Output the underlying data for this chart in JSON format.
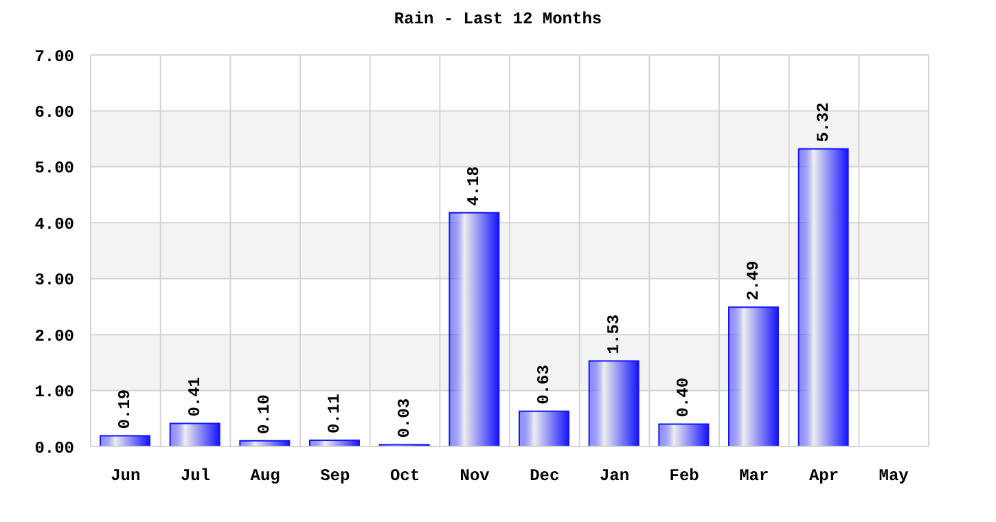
{
  "chart_data": {
    "type": "bar",
    "title": "Rain - Last 12 Months",
    "categories": [
      "Jun",
      "Jul",
      "Aug",
      "Sep",
      "Oct",
      "Nov",
      "Dec",
      "Jan",
      "Feb",
      "Mar",
      "Apr",
      "May"
    ],
    "values": [
      0.19,
      0.41,
      0.1,
      0.11,
      0.03,
      4.18,
      0.63,
      1.53,
      0.4,
      2.49,
      5.32,
      null
    ],
    "value_labels": [
      "0.19",
      "0.41",
      "0.10",
      "0.11",
      "0.03",
      "4.18",
      "0.63",
      "1.53",
      "0.40",
      "2.49",
      "5.32",
      null
    ],
    "color": "#1414ff",
    "ylim": [
      0,
      7
    ],
    "yticks": [
      {
        "value": 0,
        "label": "0.00"
      },
      {
        "value": 1,
        "label": "1.00"
      },
      {
        "value": 2,
        "label": "2.00"
      },
      {
        "value": 3,
        "label": "3.00"
      },
      {
        "value": 4,
        "label": "4.00"
      },
      {
        "value": 5,
        "label": "5.00"
      },
      {
        "value": 6,
        "label": "6.00"
      },
      {
        "value": 7,
        "label": "7.00"
      }
    ],
    "grid": true
  }
}
